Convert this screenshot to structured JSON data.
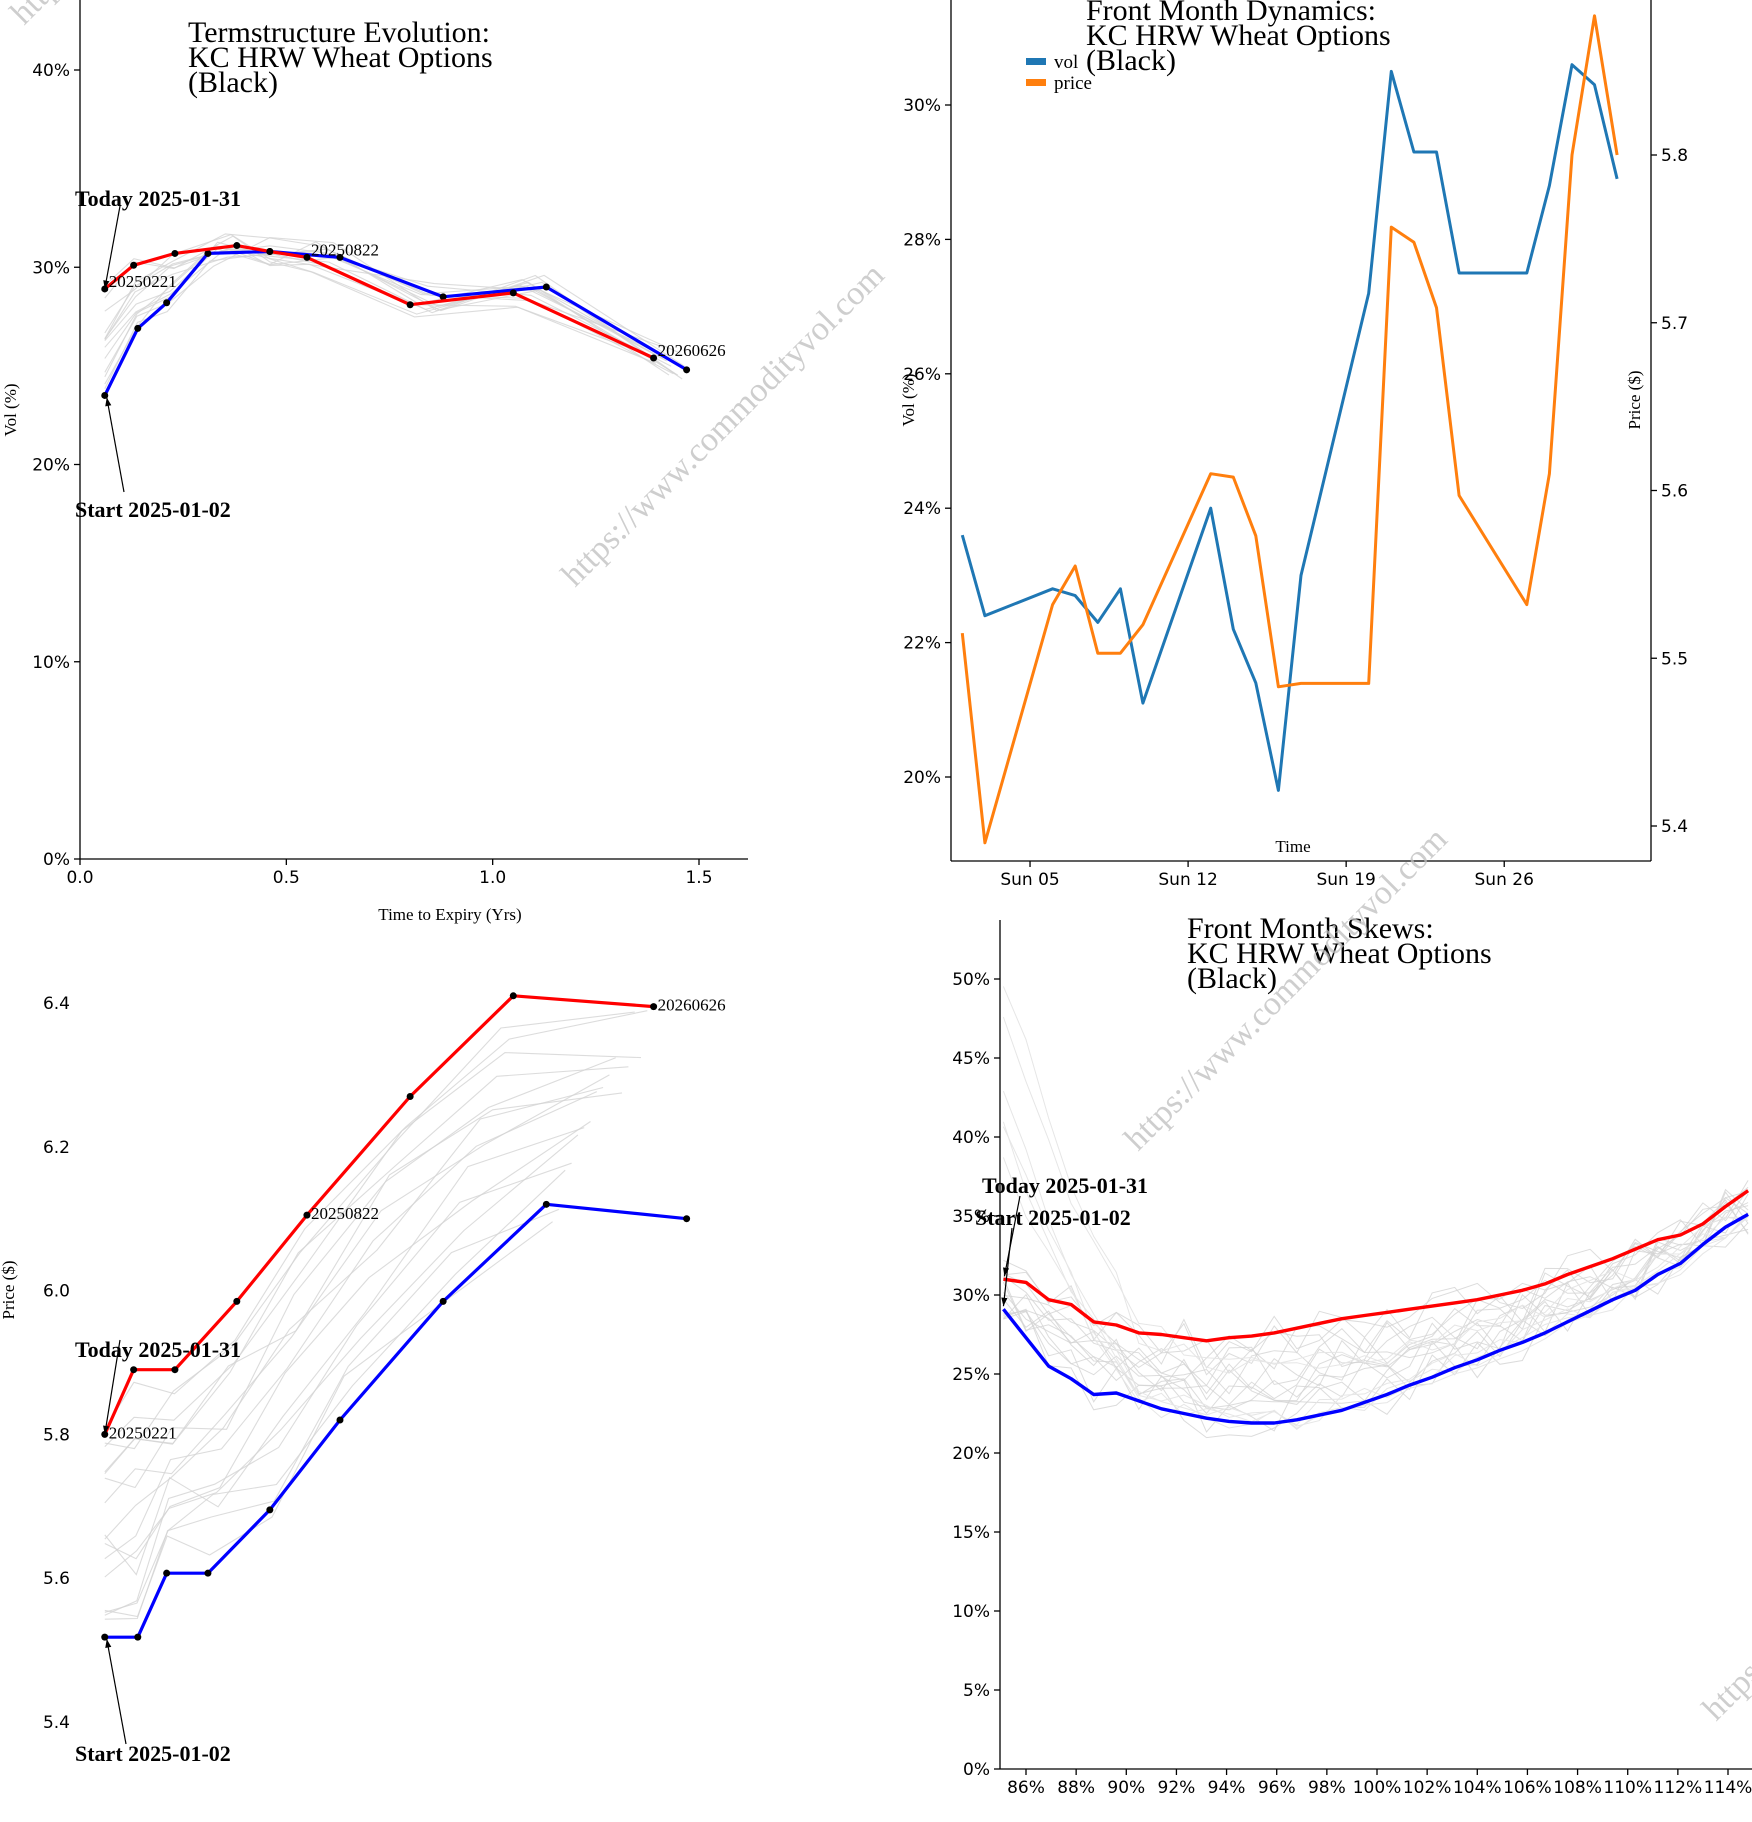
{
  "watermark": "https://www.commodityvol.com",
  "colors": {
    "today": "#ff0000",
    "start": "#0000ff",
    "history": "#d3d3d3",
    "vol": "#1f77b4",
    "price": "#ff7f0e"
  },
  "chart_data": [
    {
      "id": "termstructure",
      "type": "line",
      "title": [
        "Termstructure Evolution:",
        "KC HRW Wheat Options",
        "(Black)"
      ],
      "xlabel": "Time to Expiry (Yrs)",
      "ylabel": "Vol (%)",
      "xlim": [
        0,
        1.62
      ],
      "ylim": [
        0,
        43
      ],
      "xticks": [
        "0.0",
        "0.5",
        "1.0",
        "1.5"
      ],
      "yticks": [
        "0%",
        "10%",
        "20%",
        "30%",
        "40%"
      ],
      "annotations": {
        "today": "Today 2025-01-31",
        "start": "Start 2025-01-02"
      },
      "point_labels": [
        "20250221",
        "20250822",
        "20260626"
      ],
      "series": [
        {
          "name": "Today 2025-01-31",
          "x": [
            0.06,
            0.13,
            0.23,
            0.38,
            0.46,
            0.55,
            0.8,
            1.05,
            1.39
          ],
          "y": [
            28.9,
            30.1,
            30.7,
            31.1,
            30.8,
            30.5,
            28.1,
            28.7,
            25.4
          ]
        },
        {
          "name": "Start 2025-01-02",
          "x": [
            0.06,
            0.14,
            0.21,
            0.31,
            0.46,
            0.63,
            0.88,
            1.13,
            1.47
          ],
          "y": [
            23.5,
            26.9,
            28.2,
            30.7,
            30.8,
            30.5,
            28.5,
            29.0,
            24.8
          ]
        }
      ]
    },
    {
      "id": "dynamics",
      "type": "line",
      "title": [
        "Front Month Dynamics:",
        "KC HRW Wheat Options",
        "(Black)"
      ],
      "xlabel": "Time",
      "ylabel": "Vol (%)",
      "ylabel_right": "Price ($)",
      "xlim": [
        1.5,
        32.5
      ],
      "ylim": [
        18.8,
        31.6
      ],
      "ylim_right": [
        5.38,
        5.9
      ],
      "xticks": [
        {
          "label": "Sun 05",
          "day": 5
        },
        {
          "label": "Sun 12",
          "day": 12
        },
        {
          "label": "Sun 19",
          "day": 19
        },
        {
          "label": "Sun 26",
          "day": 26
        }
      ],
      "yticks": [
        "20%",
        "22%",
        "24%",
        "26%",
        "28%",
        "30%"
      ],
      "yticks_right": [
        "5.4",
        "5.5",
        "5.6",
        "5.7",
        "5.8"
      ],
      "legend": [
        "vol",
        "price"
      ],
      "legend_position": "top-left",
      "x": [
        2,
        3,
        6,
        7,
        8,
        9,
        10,
        13,
        14,
        15,
        16,
        17,
        20,
        21,
        22,
        23,
        24,
        27,
        28,
        29,
        30,
        31
      ],
      "series": [
        {
          "name": "vol",
          "values": [
            23.6,
            22.4,
            22.8,
            22.7,
            22.3,
            22.8,
            21.1,
            24.0,
            22.2,
            21.4,
            19.8,
            23.0,
            27.2,
            30.5,
            29.3,
            29.3,
            27.5,
            27.5,
            28.8,
            30.6,
            30.3,
            28.9
          ]
        },
        {
          "name": "price",
          "values": [
            5.515,
            5.39,
            5.532,
            5.555,
            5.503,
            5.503,
            5.52,
            5.61,
            5.608,
            5.573,
            5.483,
            5.485,
            5.485,
            5.757,
            5.748,
            5.709,
            5.597,
            5.532,
            5.61,
            5.8,
            5.883,
            5.8
          ]
        }
      ]
    },
    {
      "id": "prices",
      "type": "line",
      "xlabel": "",
      "ylabel": "Price ($)",
      "xlim": [
        0,
        1.62
      ],
      "ylim": [
        5.37,
        6.55
      ],
      "yticks": [
        "5.4",
        "5.6",
        "5.8",
        "6.0",
        "6.2",
        "6.4"
      ],
      "annotations": {
        "today": "Today 2025-01-31",
        "start": "Start 2025-01-02"
      },
      "point_labels": [
        "20250221",
        "20250822",
        "20260626"
      ],
      "series": [
        {
          "name": "Today 2025-01-31",
          "x": [
            0.06,
            0.13,
            0.23,
            0.38,
            0.55,
            0.8,
            1.05,
            1.39
          ],
          "y": [
            5.8,
            5.89,
            5.89,
            5.985,
            6.105,
            6.27,
            6.41,
            6.395
          ]
        },
        {
          "name": "Start 2025-01-02",
          "x": [
            0.06,
            0.14,
            0.21,
            0.31,
            0.46,
            0.63,
            0.88,
            1.13,
            1.47
          ],
          "y": [
            5.518,
            5.518,
            5.607,
            5.607,
            5.695,
            5.82,
            5.985,
            6.12,
            6.1
          ]
        }
      ]
    },
    {
      "id": "skews",
      "type": "line",
      "title": [
        "Front Month Skews:",
        "KC HRW Wheat Options",
        "(Black)"
      ],
      "xlabel": "",
      "ylabel": "",
      "xlim": [
        84.9,
        115
      ],
      "ylim": [
        0,
        55
      ],
      "xticks": [
        "86%",
        "88%",
        "90%",
        "92%",
        "94%",
        "96%",
        "98%",
        "100%",
        "102%",
        "104%",
        "106%",
        "108%",
        "110%",
        "112%",
        "114%"
      ],
      "yticks": [
        "0%",
        "5%",
        "10%",
        "15%",
        "20%",
        "25%",
        "30%",
        "35%",
        "40%",
        "45%",
        "50%"
      ],
      "annotations": {
        "today": "Today 2025-01-31",
        "start": "Start 2025-01-02"
      },
      "series": [
        {
          "name": "Today 2025-01-31",
          "x": [
            85.1,
            86.0,
            86.9,
            87.8,
            88.7,
            89.6,
            90.5,
            91.4,
            92.3,
            93.2,
            94.1,
            95.0,
            95.9,
            96.8,
            97.7,
            98.6,
            99.5,
            100.4,
            101.3,
            102.2,
            103.1,
            104.0,
            104.9,
            105.8,
            106.7,
            107.6,
            108.5,
            109.4,
            110.3,
            111.2,
            112.1,
            113.0,
            113.9,
            114.8
          ],
          "y": [
            31.0,
            30.8,
            29.7,
            29.4,
            28.3,
            28.1,
            27.6,
            27.5,
            27.3,
            27.1,
            27.3,
            27.4,
            27.6,
            27.9,
            28.2,
            28.5,
            28.7,
            28.9,
            29.1,
            29.3,
            29.5,
            29.7,
            30.0,
            30.3,
            30.7,
            31.3,
            31.8,
            32.3,
            32.9,
            33.5,
            33.8,
            34.5,
            35.6,
            36.6
          ]
        },
        {
          "name": "Start 2025-01-02",
          "x": [
            85.1,
            86.0,
            86.9,
            87.8,
            88.7,
            89.6,
            90.5,
            91.4,
            92.3,
            93.2,
            94.1,
            95.0,
            95.9,
            96.8,
            97.7,
            98.6,
            99.5,
            100.4,
            101.3,
            102.2,
            103.1,
            104.0,
            104.9,
            105.8,
            106.7,
            107.6,
            108.5,
            109.4,
            110.3,
            111.2,
            112.1,
            113.0,
            113.9,
            114.8
          ],
          "y": [
            29.1,
            27.3,
            25.5,
            24.7,
            23.7,
            23.8,
            23.3,
            22.8,
            22.5,
            22.2,
            22.0,
            21.9,
            21.9,
            22.1,
            22.4,
            22.7,
            23.2,
            23.7,
            24.3,
            24.8,
            25.4,
            25.9,
            26.5,
            27.0,
            27.6,
            28.3,
            29.0,
            29.7,
            30.3,
            31.3,
            32.0,
            33.2,
            34.3,
            35.1
          ]
        }
      ]
    }
  ]
}
